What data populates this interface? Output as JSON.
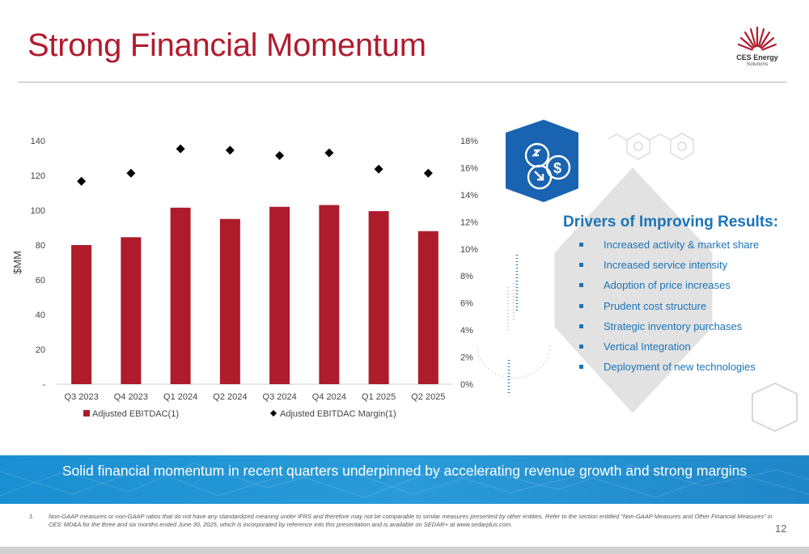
{
  "page": {
    "title": "Strong Financial Momentum",
    "page_number": "12"
  },
  "logo": {
    "name": "CES Energy",
    "sub": "Solutions",
    "icon": "ces-burst-logo"
  },
  "chart_data": {
    "type": "bar",
    "categories": [
      "Q3 2023",
      "Q4 2023",
      "Q1 2024",
      "Q2 2024",
      "Q3 2024",
      "Q4 2024",
      "Q1 2025",
      "Q2 2025"
    ],
    "series": [
      {
        "name": "Adjusted EBITDAC(1)",
        "type": "bar",
        "axis": "left",
        "color": "#ae1c2c",
        "values": [
          80,
          84.5,
          101.5,
          95,
          102,
          103,
          99.5,
          88
        ]
      },
      {
        "name": "Adjusted EBITDAC Margin(1)",
        "type": "scatter",
        "axis": "right",
        "marker": "diamond",
        "color": "#000000",
        "values": [
          15.0,
          15.6,
          17.4,
          17.3,
          16.9,
          17.1,
          15.9,
          15.6
        ]
      }
    ],
    "ylabel": "$MM",
    "ylim": [
      0,
      140
    ],
    "yticks": [
      "-",
      "20",
      "40",
      "60",
      "80",
      "100",
      "120",
      "140"
    ],
    "y2lim": [
      0,
      18
    ],
    "y2ticks": [
      "0%",
      "2%",
      "4%",
      "6%",
      "8%",
      "10%",
      "12%",
      "14%",
      "16%",
      "18%"
    ],
    "grid": false,
    "legend": "bottom"
  },
  "drivers": {
    "title": "Drivers of Improving Results:",
    "items": [
      "Increased activity & market share",
      "Increased service intensity",
      "Adoption of price increases",
      "Prudent cost structure",
      "Strategic inventory purchases",
      "Vertical Integration",
      "Deployment of new technologies"
    ],
    "icon": "money-exchange-icon"
  },
  "banner": {
    "text": "Solid financial momentum in recent quarters underpinned by accelerating revenue growth and strong margins"
  },
  "footnote": {
    "number": "1.",
    "text": "Non-GAAP measures or non-GAAP ratios that do not have any standardized meaning under IFRS and therefore may not be comparable to similar measures presented by other entities. Refer to the section entitled “Non-GAAP Measures and Other Financial Measures” in CES’ MD&A for the three and six months ended June 30, 2025, which is incorporated by reference into this presentation and is available on SEDAR+ at www.sedarplus.com."
  },
  "colors": {
    "title": "#b01c2e",
    "accent_blue": "#1b74b8",
    "hex_icon_blue": "#1a63b0",
    "bar_red": "#ae1c2c",
    "banner_blue": "#2196d6"
  }
}
